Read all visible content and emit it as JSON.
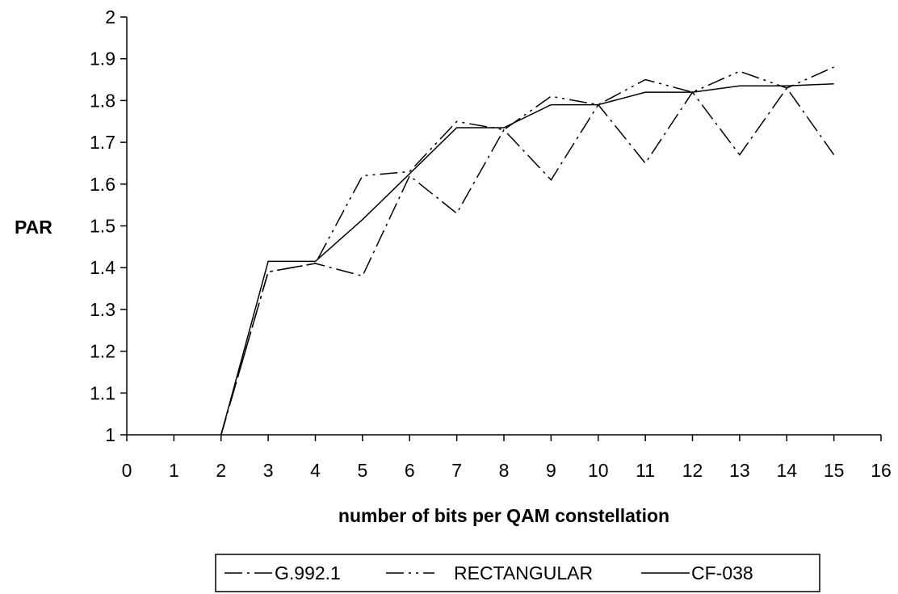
{
  "chart_data": {
    "type": "line",
    "xlabel": "number of bits per QAM constellation",
    "ylabel": "PAR",
    "xlim": [
      0,
      16
    ],
    "ylim": [
      1,
      2
    ],
    "x_ticks": [
      "0",
      "1",
      "2",
      "3",
      "4",
      "5",
      "6",
      "7",
      "8",
      "9",
      "10",
      "11",
      "12",
      "13",
      "14",
      "15",
      "16"
    ],
    "y_ticks": [
      "1",
      "1.1",
      "1.2",
      "1.3",
      "1.4",
      "1.5",
      "1.6",
      "1.7",
      "1.8",
      "1.9",
      "2"
    ],
    "grid": false,
    "legend_position": "bottom",
    "series": [
      {
        "name": "G.992.1",
        "line_style": "dash-dot",
        "x": [
          2,
          3,
          4,
          5,
          6,
          7,
          8,
          9,
          10,
          11,
          12,
          13,
          14,
          15
        ],
        "y": [
          1.0,
          1.39,
          1.41,
          1.38,
          1.62,
          1.53,
          1.73,
          1.61,
          1.79,
          1.65,
          1.82,
          1.67,
          1.83,
          1.67
        ]
      },
      {
        "name": "RECTANGULAR",
        "line_style": "dash-dot-dot",
        "x": [
          2,
          3,
          4,
          5,
          6,
          7,
          8,
          9,
          10,
          11,
          12,
          13,
          14,
          15
        ],
        "y": [
          1.0,
          1.39,
          1.41,
          1.62,
          1.63,
          1.75,
          1.73,
          1.81,
          1.79,
          1.85,
          1.82,
          1.87,
          1.83,
          1.88
        ]
      },
      {
        "name": "CF-038",
        "line_style": "solid",
        "x": [
          2,
          3,
          4,
          5,
          6,
          7,
          8,
          9,
          10,
          11,
          12,
          13,
          14,
          15
        ],
        "y": [
          1.0,
          1.415,
          1.415,
          1.515,
          1.625,
          1.735,
          1.735,
          1.79,
          1.79,
          1.82,
          1.82,
          1.835,
          1.835,
          1.84
        ]
      }
    ]
  }
}
